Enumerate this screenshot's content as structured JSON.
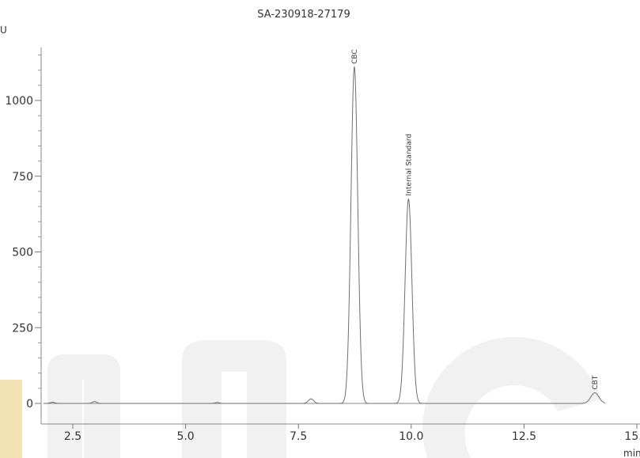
{
  "chart_data": {
    "type": "line",
    "title": "SA-230918-27179",
    "ylabel": "U",
    "xlabel": "min",
    "xlim": [
      1.85,
      15.0
    ],
    "ylim": [
      -40,
      1170
    ],
    "x_ticks": [
      2.5,
      5.0,
      7.5,
      10.0,
      12.5,
      15.0
    ],
    "x_tick_labels": [
      "2.5",
      "5.0",
      "7.5",
      "10.0",
      "12.5",
      "15.0"
    ],
    "y_ticks": [
      0,
      250,
      500,
      750,
      1000
    ],
    "y_tick_labels": [
      "0",
      "250",
      "500",
      "750",
      "1000"
    ],
    "grid": false,
    "series": [
      {
        "color": "#6f6f6f",
        "baseline": 0,
        "peaks": [
          {
            "rt": 2.05,
            "height": 4,
            "width": 0.05
          },
          {
            "rt": 2.98,
            "height": 6,
            "width": 0.05
          },
          {
            "rt": 5.7,
            "height": 3,
            "width": 0.05
          },
          {
            "rt": 7.78,
            "height": 15,
            "width": 0.06
          },
          {
            "rt": 8.74,
            "height": 1110,
            "width": 0.075
          },
          {
            "rt": 9.94,
            "height": 675,
            "width": 0.075
          },
          {
            "rt": 14.07,
            "height": 35,
            "width": 0.09
          }
        ]
      }
    ],
    "peak_labels": [
      {
        "text": "CBC",
        "x": 8.74,
        "y": 1110
      },
      {
        "text": "Internal Standard",
        "x": 9.94,
        "y": 675
      },
      {
        "text": "CBT",
        "x": 14.07,
        "y": 35
      }
    ]
  }
}
